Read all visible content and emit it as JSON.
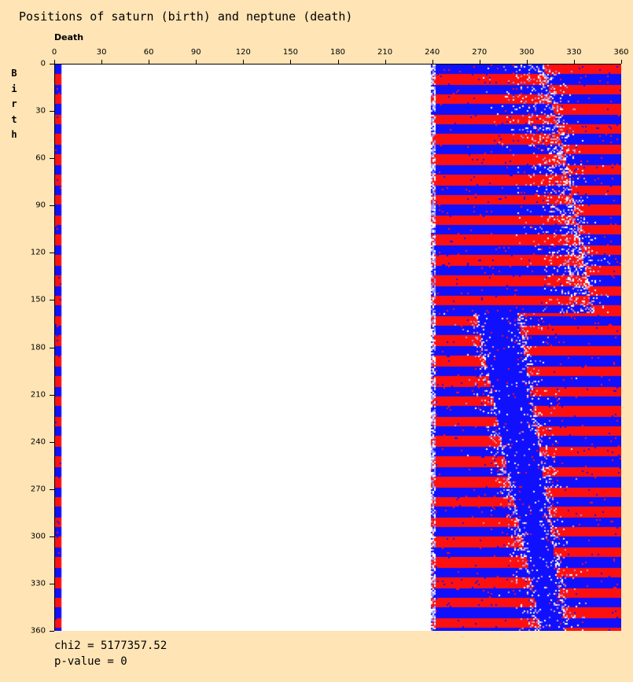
{
  "chart_data": {
    "type": "heatmap",
    "title": "Positions of saturn (birth) and neptune (death)",
    "xlabel": "Death",
    "ylabel": "Birth",
    "xlim": [
      0,
      360
    ],
    "ylim": [
      0,
      360
    ],
    "xticks": [
      0,
      30,
      60,
      90,
      120,
      150,
      180,
      210,
      240,
      270,
      300,
      330,
      360
    ],
    "yticks": [
      0,
      30,
      60,
      90,
      120,
      150,
      180,
      210,
      240,
      270,
      300,
      330,
      360
    ],
    "colors": {
      "over": "#FF1010",
      "under": "#1010FF",
      "neutral": "#FFFFFF",
      "light_over": "#FF9A9A",
      "light_under": "#9A9AFF"
    },
    "model": {
      "note": "approximate reconstruction of cell colours: horizontal bands in birth, phase flips across boundaries in death",
      "band_period_deg": 12.8,
      "band_offset_deg": 5.5,
      "red_fraction": 0.52,
      "data_death_ranges": [
        [
          0,
          4
        ],
        [
          239,
          360
        ]
      ],
      "upper_boundary": [
        [
          0,
          310
        ],
        [
          60,
          324
        ],
        [
          150,
          340
        ],
        [
          160,
          342
        ]
      ],
      "lower_blue_left": [
        [
          160,
          268
        ],
        [
          255,
          287
        ],
        [
          360,
          309
        ]
      ],
      "lower_blue_right": [
        [
          160,
          294
        ],
        [
          255,
          309
        ],
        [
          360,
          324
        ]
      ],
      "split_birth": 158
    },
    "stats": {
      "chi2": "chi2 = 5177357.52",
      "pvalue": "p-value = 0"
    }
  }
}
